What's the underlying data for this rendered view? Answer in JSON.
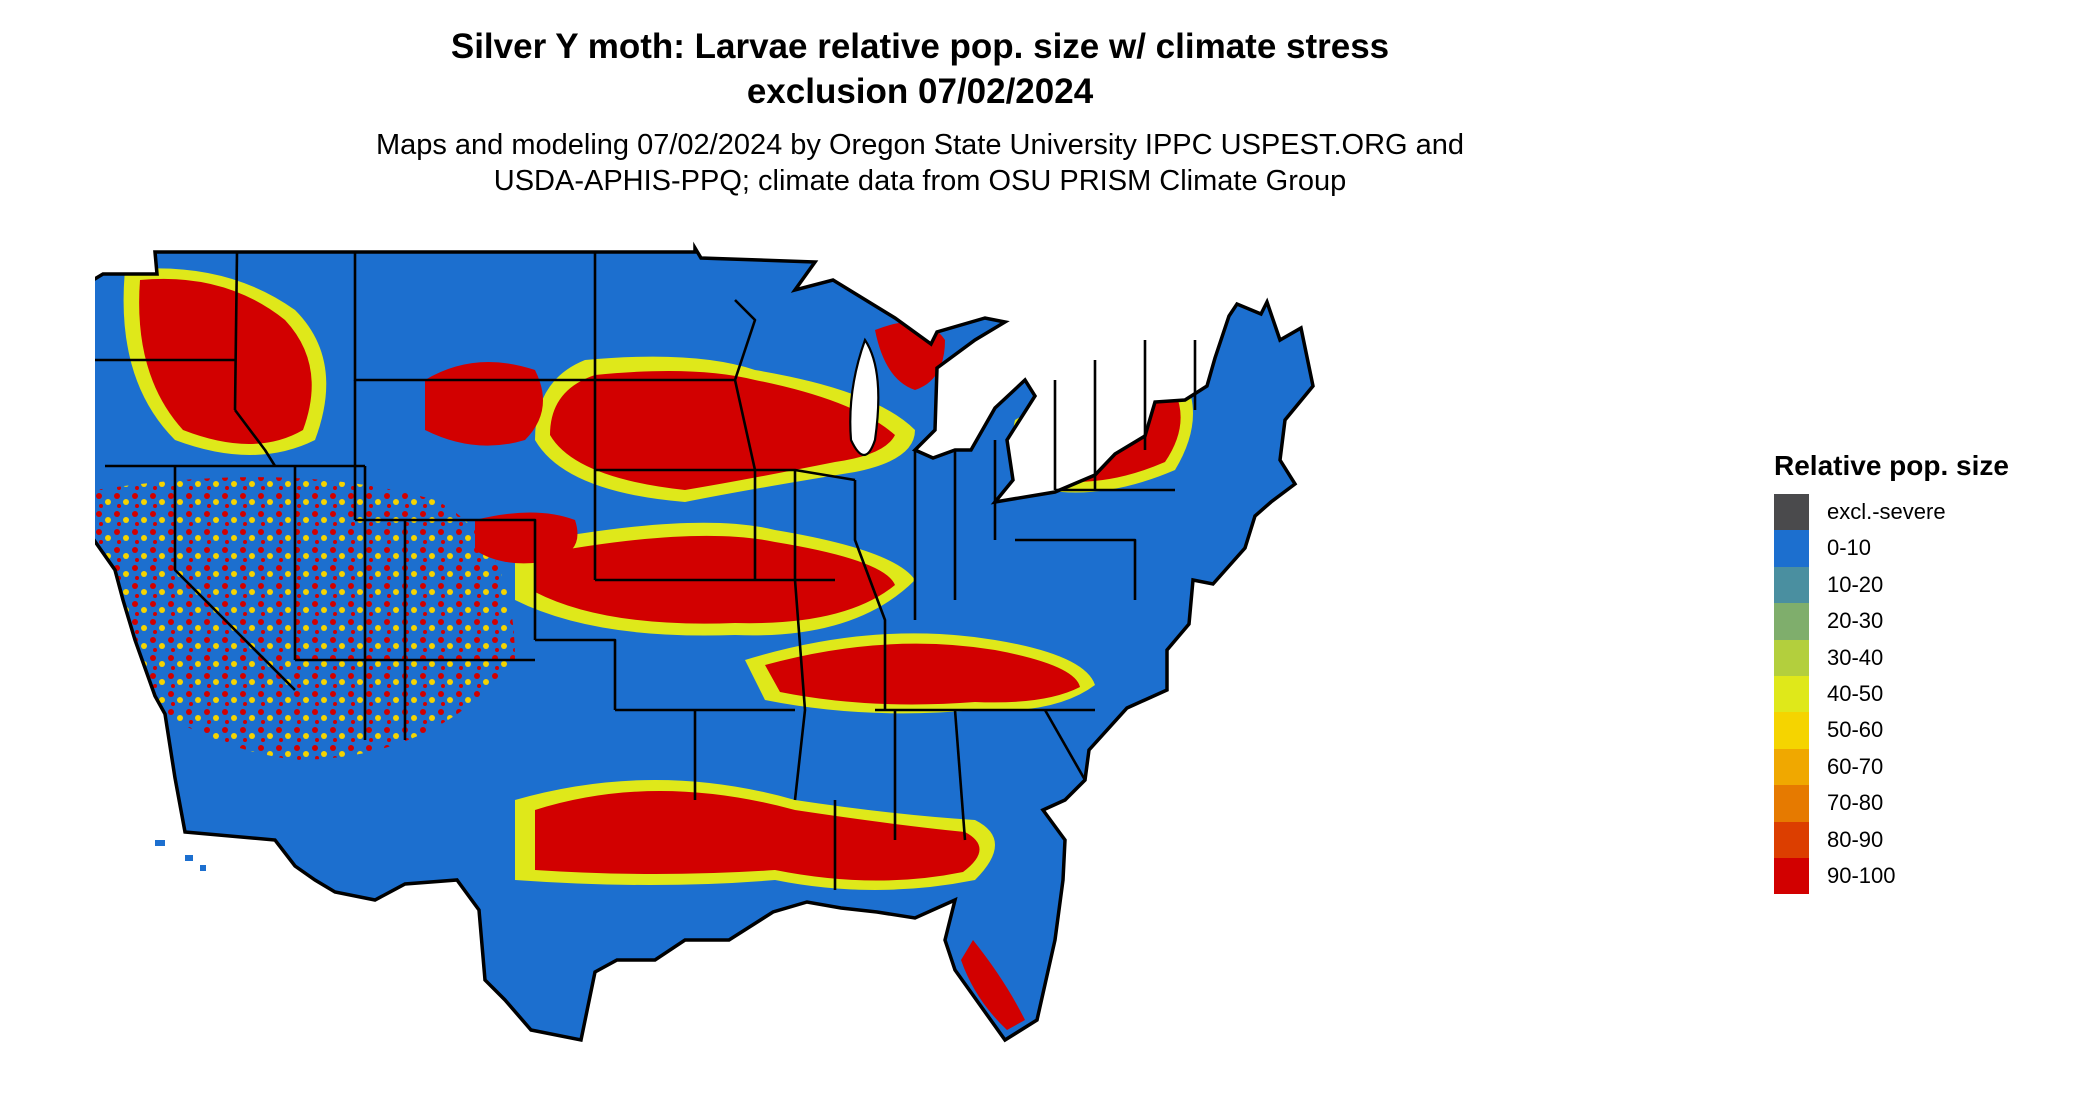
{
  "title_line1": "Silver Y moth: Larvae relative pop. size w/ climate stress",
  "title_line2": "exclusion 07/02/2024",
  "subtitle_line1": "Maps and modeling 07/02/2024 by Oregon State University IPPC USPEST.ORG and",
  "subtitle_line2": "USDA-APHIS-PPQ; climate data from OSU PRISM Climate Group",
  "legend": {
    "title": "Relative pop. size",
    "items": [
      {
        "label": "excl.-severe",
        "color": "#4a4a4c"
      },
      {
        "label": "0-10",
        "color": "#1c6fcf"
      },
      {
        "label": "10-20",
        "color": "#4a8fa0"
      },
      {
        "label": "20-30",
        "color": "#7fae6c"
      },
      {
        "label": "30-40",
        "color": "#b3cf3d"
      },
      {
        "label": "40-50",
        "color": "#dfe81a"
      },
      {
        "label": "50-60",
        "color": "#f5d400"
      },
      {
        "label": "60-70",
        "color": "#f0a800"
      },
      {
        "label": "70-80",
        "color": "#e67a00"
      },
      {
        "label": "80-90",
        "color": "#dc3e00"
      },
      {
        "label": "90-100",
        "color": "#d20000"
      }
    ]
  },
  "map": {
    "region": "Conterminous United States",
    "background_class": "0-10",
    "high_population_regions": [
      "Pacific Northwest mountains",
      "Northern Great Plains",
      "Central Plains",
      "Ohio Valley",
      "Gulf Coast",
      "Northeast",
      "Michigan"
    ]
  }
}
